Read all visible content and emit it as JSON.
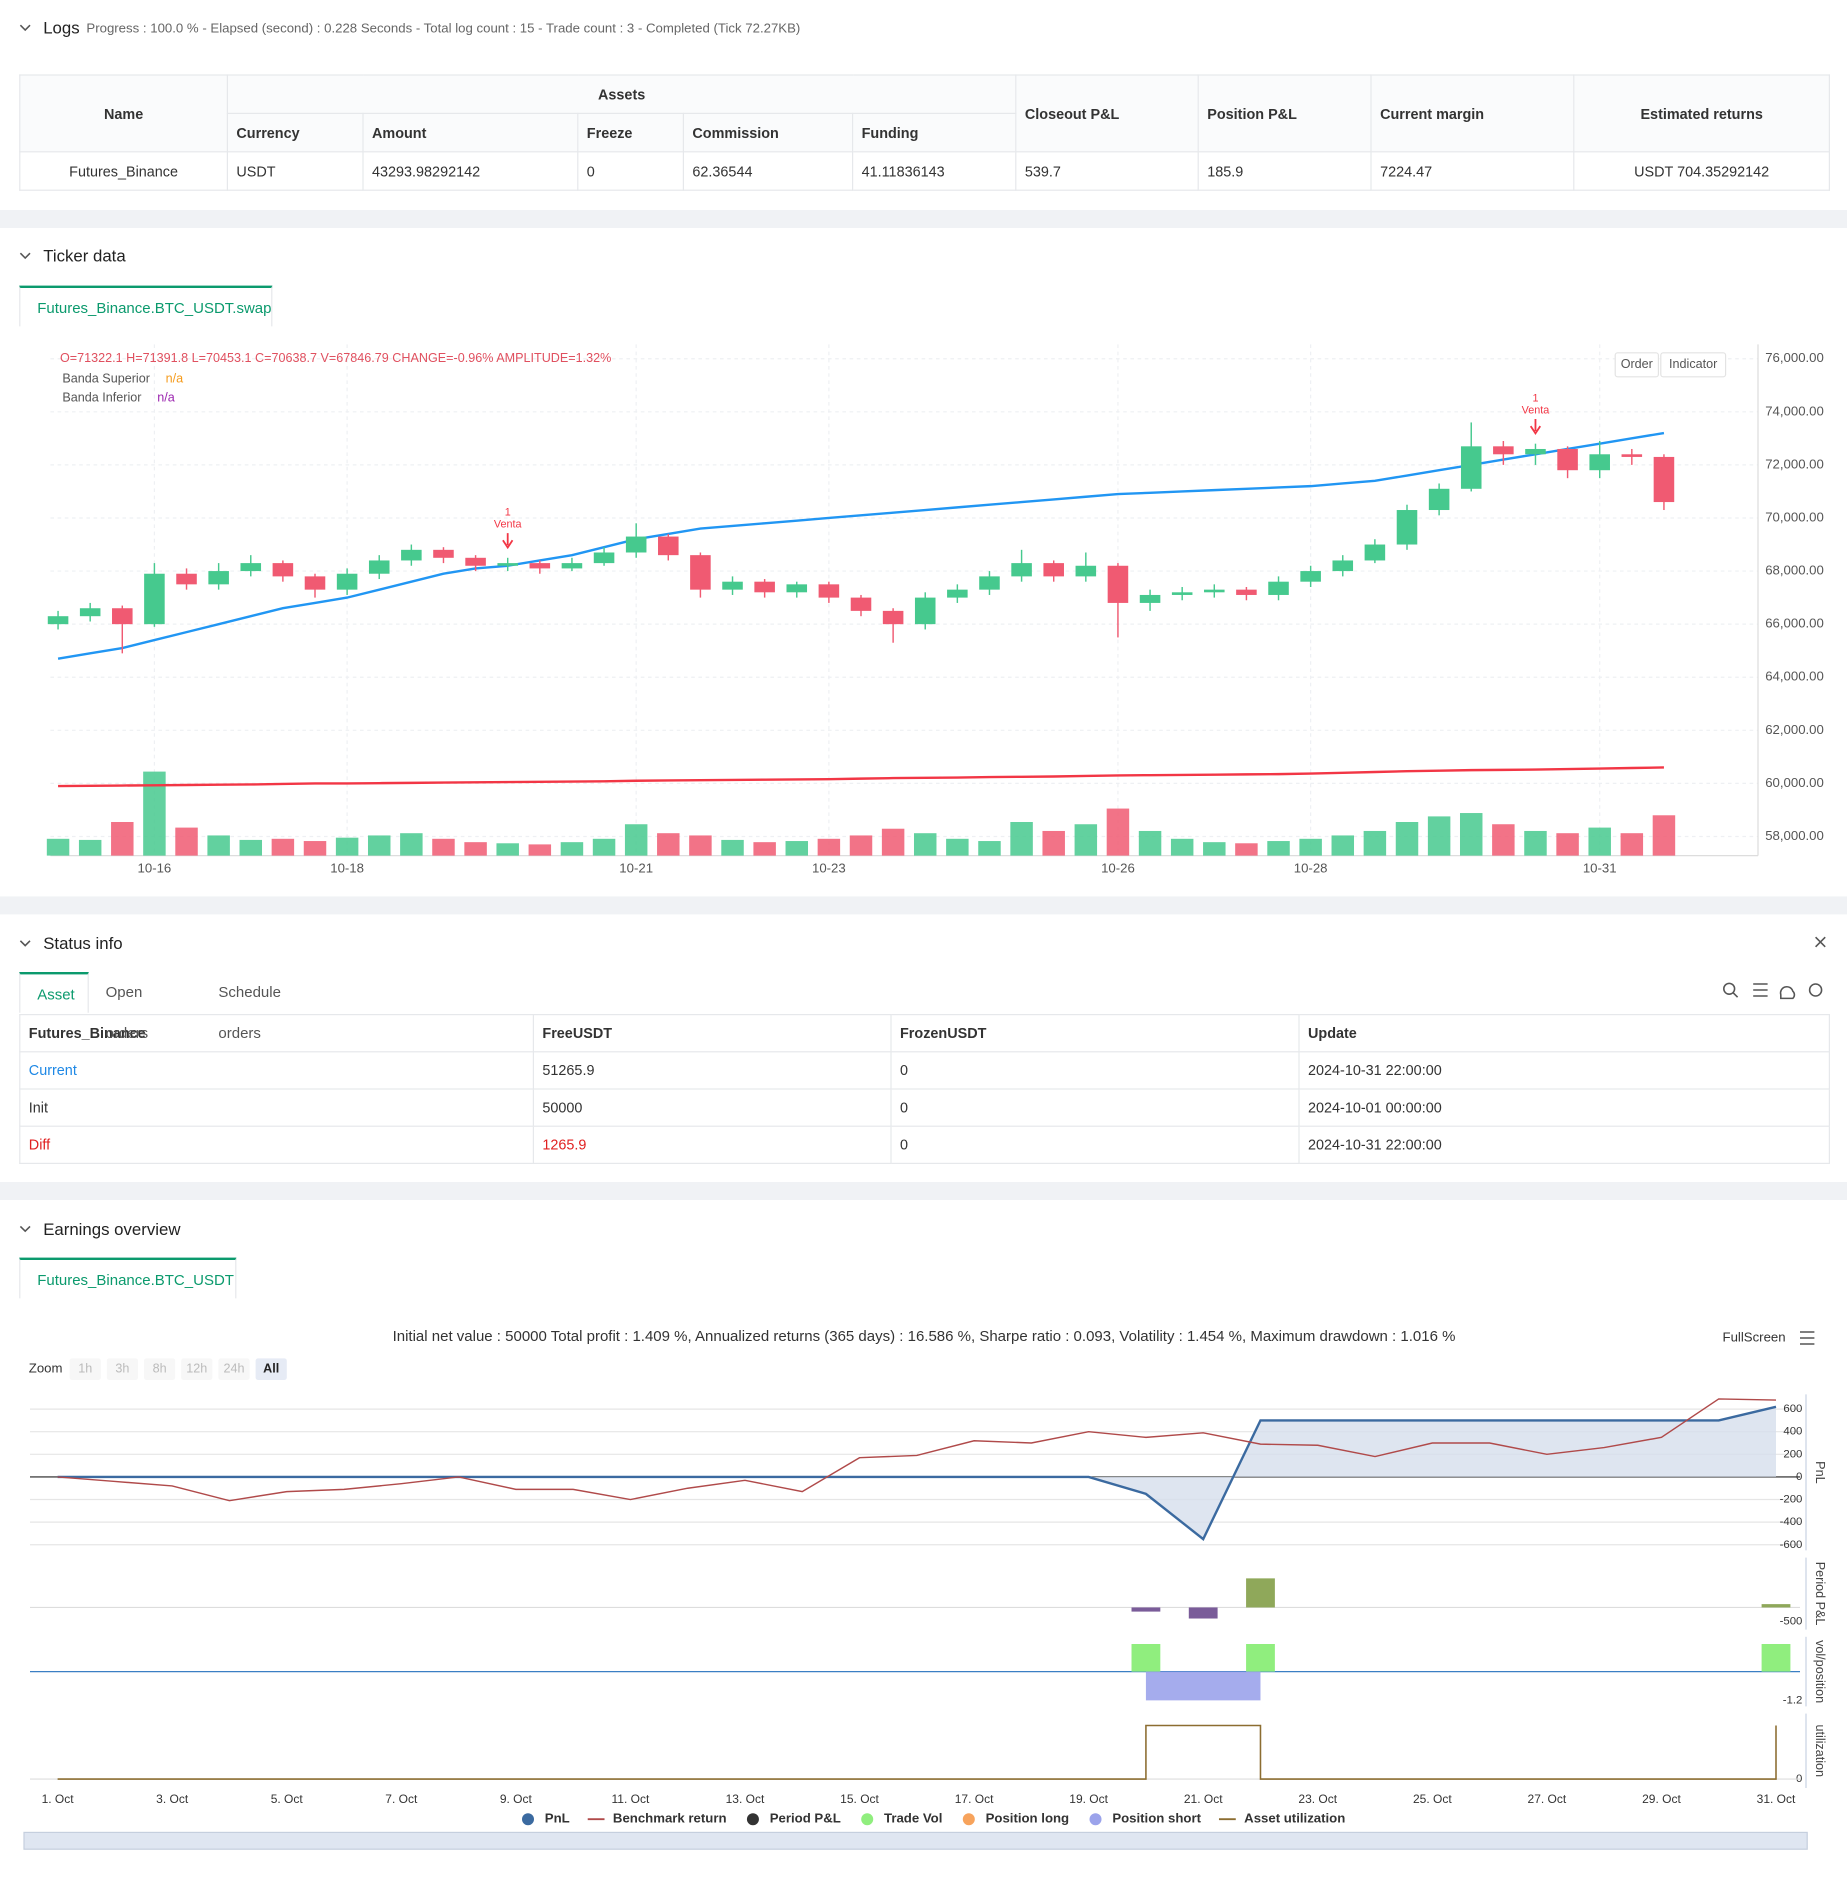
{
  "logs": {
    "title": "Logs",
    "summary": "Progress : 100.0 % - Elapsed (second) : 0.228 Seconds - Total log count : 15 - Trade count : 3 - Completed (Tick 72.27KB)",
    "table": {
      "columns": [
        "Name",
        "Assets",
        "Closeout P&L",
        "Position P&L",
        "Current margin",
        "Estimated returns"
      ],
      "asset_columns": [
        "Currency",
        "Amount",
        "Freeze",
        "Commission",
        "Funding"
      ],
      "rows": [
        [
          "Futures_Binance",
          "USDT",
          "43293.98292142",
          "0",
          "62.36544",
          "41.11836143",
          "539.7",
          "185.9",
          "7224.47",
          "USDT 704.35292142"
        ]
      ]
    }
  },
  "ticker": {
    "title": "Ticker data",
    "tab": "Futures_Binance.BTC_USDT.swap",
    "ohlc": "O=71322.1 H=71391.8 L=70453.1 C=70638.7 V=67846.79 CHANGE=-0.96% AMPLITUDE=1.32%",
    "legend": [
      {
        "name": "Banda Superior",
        "value": "n/a",
        "color": "#f59b1c"
      },
      {
        "name": "Banda Inferior",
        "value": "n/a",
        "color": "#9c27b0"
      }
    ],
    "buttons": [
      "Order",
      "Indicator"
    ]
  },
  "status": {
    "title": "Status info",
    "tabs": [
      "Asset",
      "Open orders",
      "Schedule orders"
    ],
    "table": {
      "columns": [
        "Futures_Binance",
        "FreeUSDT",
        "FrozenUSDT",
        "Update"
      ],
      "rows": [
        [
          "Current",
          "51265.9",
          "0",
          "2024-10-31 22:00:00"
        ],
        [
          "Init",
          "50000",
          "0",
          "2024-10-01 00:00:00"
        ],
        [
          "Diff",
          "1265.9",
          "0",
          "2024-10-31 22:00:00"
        ]
      ]
    }
  },
  "earnings": {
    "title": "Earnings overview",
    "tab": "Futures_Binance.BTC_USDT",
    "summary": "Initial net value : 50000 Total profit : 1.409 %, Annualized returns (365 days) : 16.586 %, Sharpe ratio : 0.093, Volatility : 1.454 %, Maximum drawdown : 1.016 %",
    "fullscreen": "FullScreen",
    "zoom": {
      "label": "Zoom",
      "buttons": [
        "1h",
        "3h",
        "8h",
        "12h",
        "24h",
        "All"
      ]
    }
  },
  "chart_data": [
    {
      "type": "candlestick",
      "categories": [
        null,
        null,
        null,
        "10-16",
        null,
        null,
        null,
        null,
        null,
        "10-18",
        null,
        null,
        null,
        null,
        null,
        null,
        null,
        null,
        "10-21",
        null,
        null,
        null,
        null,
        null,
        "10-23",
        null,
        null,
        null,
        null,
        null,
        null,
        null,
        null,
        "10-26",
        null,
        null,
        null,
        null,
        null,
        "10-28",
        null,
        null,
        null,
        null,
        null,
        null,
        null,
        null,
        "10-31",
        null,
        null
      ],
      "open": [
        66000,
        66300,
        66600,
        66000,
        67900,
        67500,
        68000,
        68300,
        67800,
        67300,
        67900,
        68400,
        68800,
        68500,
        68200,
        68300,
        68100,
        68300,
        68700,
        69300,
        68600,
        67300,
        67600,
        67200,
        67500,
        67000,
        66500,
        66000,
        67000,
        67300,
        67800,
        68300,
        67800,
        68200,
        66800,
        67100,
        67200,
        67300,
        67100,
        67600,
        68000,
        68400,
        69000,
        70300,
        71100,
        72700,
        72400,
        72600,
        71800,
        72400,
        72300
      ],
      "high": [
        66500,
        66800,
        66700,
        68300,
        68100,
        68300,
        68600,
        68400,
        67900,
        68100,
        68600,
        69000,
        68900,
        68600,
        68500,
        68400,
        68500,
        68900,
        69800,
        69400,
        68700,
        67800,
        67700,
        67600,
        67600,
        67100,
        66600,
        67200,
        67500,
        68000,
        68800,
        68400,
        68700,
        68300,
        67300,
        67400,
        67500,
        67400,
        67800,
        68200,
        68600,
        69200,
        70500,
        71300,
        73600,
        72900,
        72800,
        72700,
        72900,
        72600,
        72400
      ],
      "low": [
        65800,
        66100,
        64900,
        65900,
        67300,
        67300,
        67800,
        67600,
        67000,
        67100,
        67700,
        68200,
        68300,
        68000,
        68000,
        67900,
        68000,
        68200,
        68500,
        68400,
        67000,
        67100,
        67000,
        67000,
        66800,
        66300,
        65300,
        65800,
        66800,
        67100,
        67600,
        67600,
        67600,
        65500,
        66500,
        66900,
        67000,
        66900,
        66900,
        67400,
        67800,
        68300,
        68800,
        70100,
        71000,
        72000,
        72000,
        71500,
        71500,
        72000,
        70300
      ],
      "close": [
        66300,
        66600,
        66000,
        67900,
        67500,
        68000,
        68300,
        67800,
        67300,
        67900,
        68400,
        68800,
        68500,
        68200,
        68300,
        68100,
        68300,
        68700,
        69300,
        68600,
        67300,
        67600,
        67200,
        67500,
        67000,
        66500,
        66000,
        67000,
        67300,
        67800,
        68300,
        67800,
        68200,
        66800,
        67100,
        67200,
        67300,
        67100,
        67600,
        68000,
        68400,
        69000,
        70300,
        71100,
        72700,
        72400,
        72600,
        71800,
        72400,
        72300,
        70600
      ],
      "volume": [
        15000,
        14000,
        30000,
        75000,
        25000,
        18000,
        14000,
        15000,
        13000,
        16000,
        18000,
        20000,
        15000,
        12000,
        11000,
        10000,
        12000,
        15000,
        28000,
        20000,
        18000,
        14000,
        12000,
        13000,
        15000,
        18000,
        24000,
        20000,
        15000,
        13000,
        30000,
        22000,
        28000,
        42000,
        22000,
        15000,
        12000,
        11000,
        13000,
        15000,
        18000,
        22000,
        30000,
        35000,
        38000,
        28000,
        22000,
        20000,
        25000,
        20000,
        36000
      ],
      "up_color": "#46c98e",
      "down_color": "#f05a72",
      "lines": [
        {
          "color": "#2196f3",
          "values": [
            64700,
            64900,
            65100,
            65400,
            65700,
            66000,
            66300,
            66600,
            66800,
            67000,
            67300,
            67600,
            67900,
            68100,
            68200,
            68400,
            68600,
            68900,
            69200,
            69400,
            69600,
            69700,
            69800,
            69900,
            70000,
            70100,
            70200,
            70300,
            70400,
            70500,
            70600,
            70700,
            70800,
            70900,
            70950,
            71000,
            71050,
            71100,
            71150,
            71200,
            71300,
            71400,
            71600,
            71800,
            72000,
            72200,
            72400,
            72600,
            72800,
            73000,
            73200
          ]
        },
        {
          "color": "#f23645",
          "values": [
            59900,
            59910,
            59920,
            59930,
            59940,
            59950,
            59960,
            59980,
            60000,
            60000,
            60010,
            60020,
            60030,
            60040,
            60050,
            60060,
            60070,
            60080,
            60100,
            60110,
            60120,
            60130,
            60140,
            60150,
            60160,
            60180,
            60200,
            60210,
            60220,
            60240,
            60250,
            60260,
            60280,
            60300,
            60310,
            60320,
            60330,
            60340,
            60350,
            60370,
            60400,
            60430,
            60460,
            60480,
            60500,
            60510,
            60520,
            60540,
            60560,
            60580,
            60600
          ]
        }
      ],
      "ylim": [
        57280,
        76540
      ],
      "yticks": [
        {
          "value": 58000,
          "label": "58,000.00"
        },
        {
          "value": 60000,
          "label": "60,000.00"
        },
        {
          "value": 62000,
          "label": "62,000.00"
        },
        {
          "value": 64000,
          "label": "64,000.00"
        },
        {
          "value": 66000,
          "label": "66,000.00"
        },
        {
          "value": 68000,
          "label": "68,000.00"
        },
        {
          "value": 70000,
          "label": "70,000.00"
        },
        {
          "value": 72000,
          "label": "72,000.00"
        },
        {
          "value": 74000,
          "label": "74,000.00"
        },
        {
          "value": 76000,
          "label": "76,000.00"
        }
      ],
      "grid": true,
      "annotations": [
        {
          "count": "1",
          "text": "Venta",
          "index": 14,
          "value": 68300,
          "color": "#f23645"
        },
        {
          "count": "1",
          "text": "Venta",
          "index": 46,
          "value": 72600,
          "color": "#f23645"
        }
      ]
    },
    {
      "type": "panels",
      "categories": [
        "1. Oct",
        null,
        "3. Oct",
        null,
        "5. Oct",
        null,
        "7. Oct",
        null,
        "9. Oct",
        null,
        "11. Oct",
        null,
        "13. Oct",
        null,
        "15. Oct",
        null,
        "17. Oct",
        null,
        "19. Oct",
        null,
        "21. Oct",
        null,
        "23. Oct",
        null,
        "25. Oct",
        null,
        "27. Oct",
        null,
        "29. Oct",
        null,
        "31. Oct"
      ],
      "panels": [
        {
          "ylabel": "PnL",
          "ylim": [
            -650,
            730
          ],
          "yticks": [
            -600,
            -400,
            -200,
            0,
            200,
            400,
            600
          ],
          "grid": true,
          "series": [
            {
              "name": "PnL",
              "kind": "line",
              "symbol": "circle",
              "color": "#3b6aa0",
              "fill": "#d6dfec",
              "values": [
                0,
                0,
                0,
                0,
                0,
                0,
                0,
                0,
                0,
                0,
                0,
                0,
                0,
                0,
                0,
                0,
                0,
                0,
                0,
                -150,
                -550,
                500,
                500,
                500,
                500,
                500,
                500,
                500,
                500,
                500,
                620
              ]
            },
            {
              "name": "Benchmark return",
              "kind": "line",
              "symbol": "line",
              "color": "#b04a4a",
              "values": [
                0,
                -40,
                -80,
                -210,
                -130,
                -110,
                -60,
                0,
                -110,
                -110,
                -200,
                -100,
                -30,
                -130,
                170,
                190,
                320,
                300,
                400,
                350,
                390,
                290,
                280,
                180,
                300,
                300,
                200,
                260,
                350,
                690,
                680
              ]
            }
          ]
        },
        {
          "ylabel": "Period P&L",
          "ylim": [
            -800,
            1800
          ],
          "yticks": [
            -500
          ],
          "grid": false,
          "series": [
            {
              "name": "Period P&L",
              "kind": "bar",
              "symbol": "circle",
              "color": "#333333",
              "positive_color": "#8fa85a",
              "negative_color": "#7a5c99",
              "values": [
                null,
                null,
                null,
                null,
                null,
                null,
                null,
                null,
                null,
                null,
                null,
                null,
                null,
                null,
                null,
                null,
                null,
                null,
                null,
                -150,
                -400,
                1050,
                null,
                null,
                null,
                null,
                null,
                null,
                null,
                null,
                120
              ]
            }
          ]
        },
        {
          "ylabel": "vol/position",
          "ylim": [
            -1.45,
            1.45
          ],
          "yticks": [
            -1.2
          ],
          "grid": false,
          "series": [
            {
              "name": "Trade Vol",
              "kind": "bar",
              "symbol": "circle",
              "color": "#90ee7e",
              "values": [
                null,
                null,
                null,
                null,
                null,
                null,
                null,
                null,
                null,
                null,
                null,
                null,
                null,
                null,
                null,
                null,
                null,
                null,
                null,
                1.15,
                null,
                1.15,
                null,
                null,
                null,
                null,
                null,
                null,
                null,
                null,
                1.15
              ]
            },
            {
              "name": "Position long",
              "kind": "area",
              "symbol": "circle",
              "color": "#f7a35c",
              "values": [
                null,
                null,
                null,
                null,
                null,
                null,
                null,
                null,
                null,
                null,
                null,
                null,
                null,
                null,
                null,
                null,
                null,
                null,
                null,
                null,
                null,
                null,
                null,
                null,
                null,
                null,
                null,
                null,
                null,
                null,
                null
              ]
            },
            {
              "name": "Position short",
              "kind": "area",
              "symbol": "circle",
              "color": "#9ba3eb",
              "values": [
                null,
                null,
                null,
                null,
                null,
                null,
                null,
                null,
                null,
                null,
                null,
                null,
                null,
                null,
                null,
                null,
                null,
                null,
                null,
                -1.2,
                -1.2,
                -1.2,
                null,
                null,
                null,
                null,
                null,
                null,
                null,
                null,
                null
              ]
            }
          ]
        },
        {
          "ylabel": "utilization",
          "ylim": [
            -0.15,
            1.1
          ],
          "yticks": [
            0
          ],
          "grid": false,
          "series": [
            {
              "name": "Asset utilization",
              "kind": "step",
              "symbol": "line",
              "color": "#8c6d31",
              "values": [
                0,
                0,
                0,
                0,
                0,
                0,
                0,
                0,
                0,
                0,
                0,
                0,
                0,
                0,
                0,
                0,
                0,
                0,
                0,
                0.9,
                0.9,
                0,
                0,
                0,
                0,
                0,
                0,
                0,
                0,
                0,
                0.9
              ]
            }
          ]
        }
      ]
    }
  ]
}
